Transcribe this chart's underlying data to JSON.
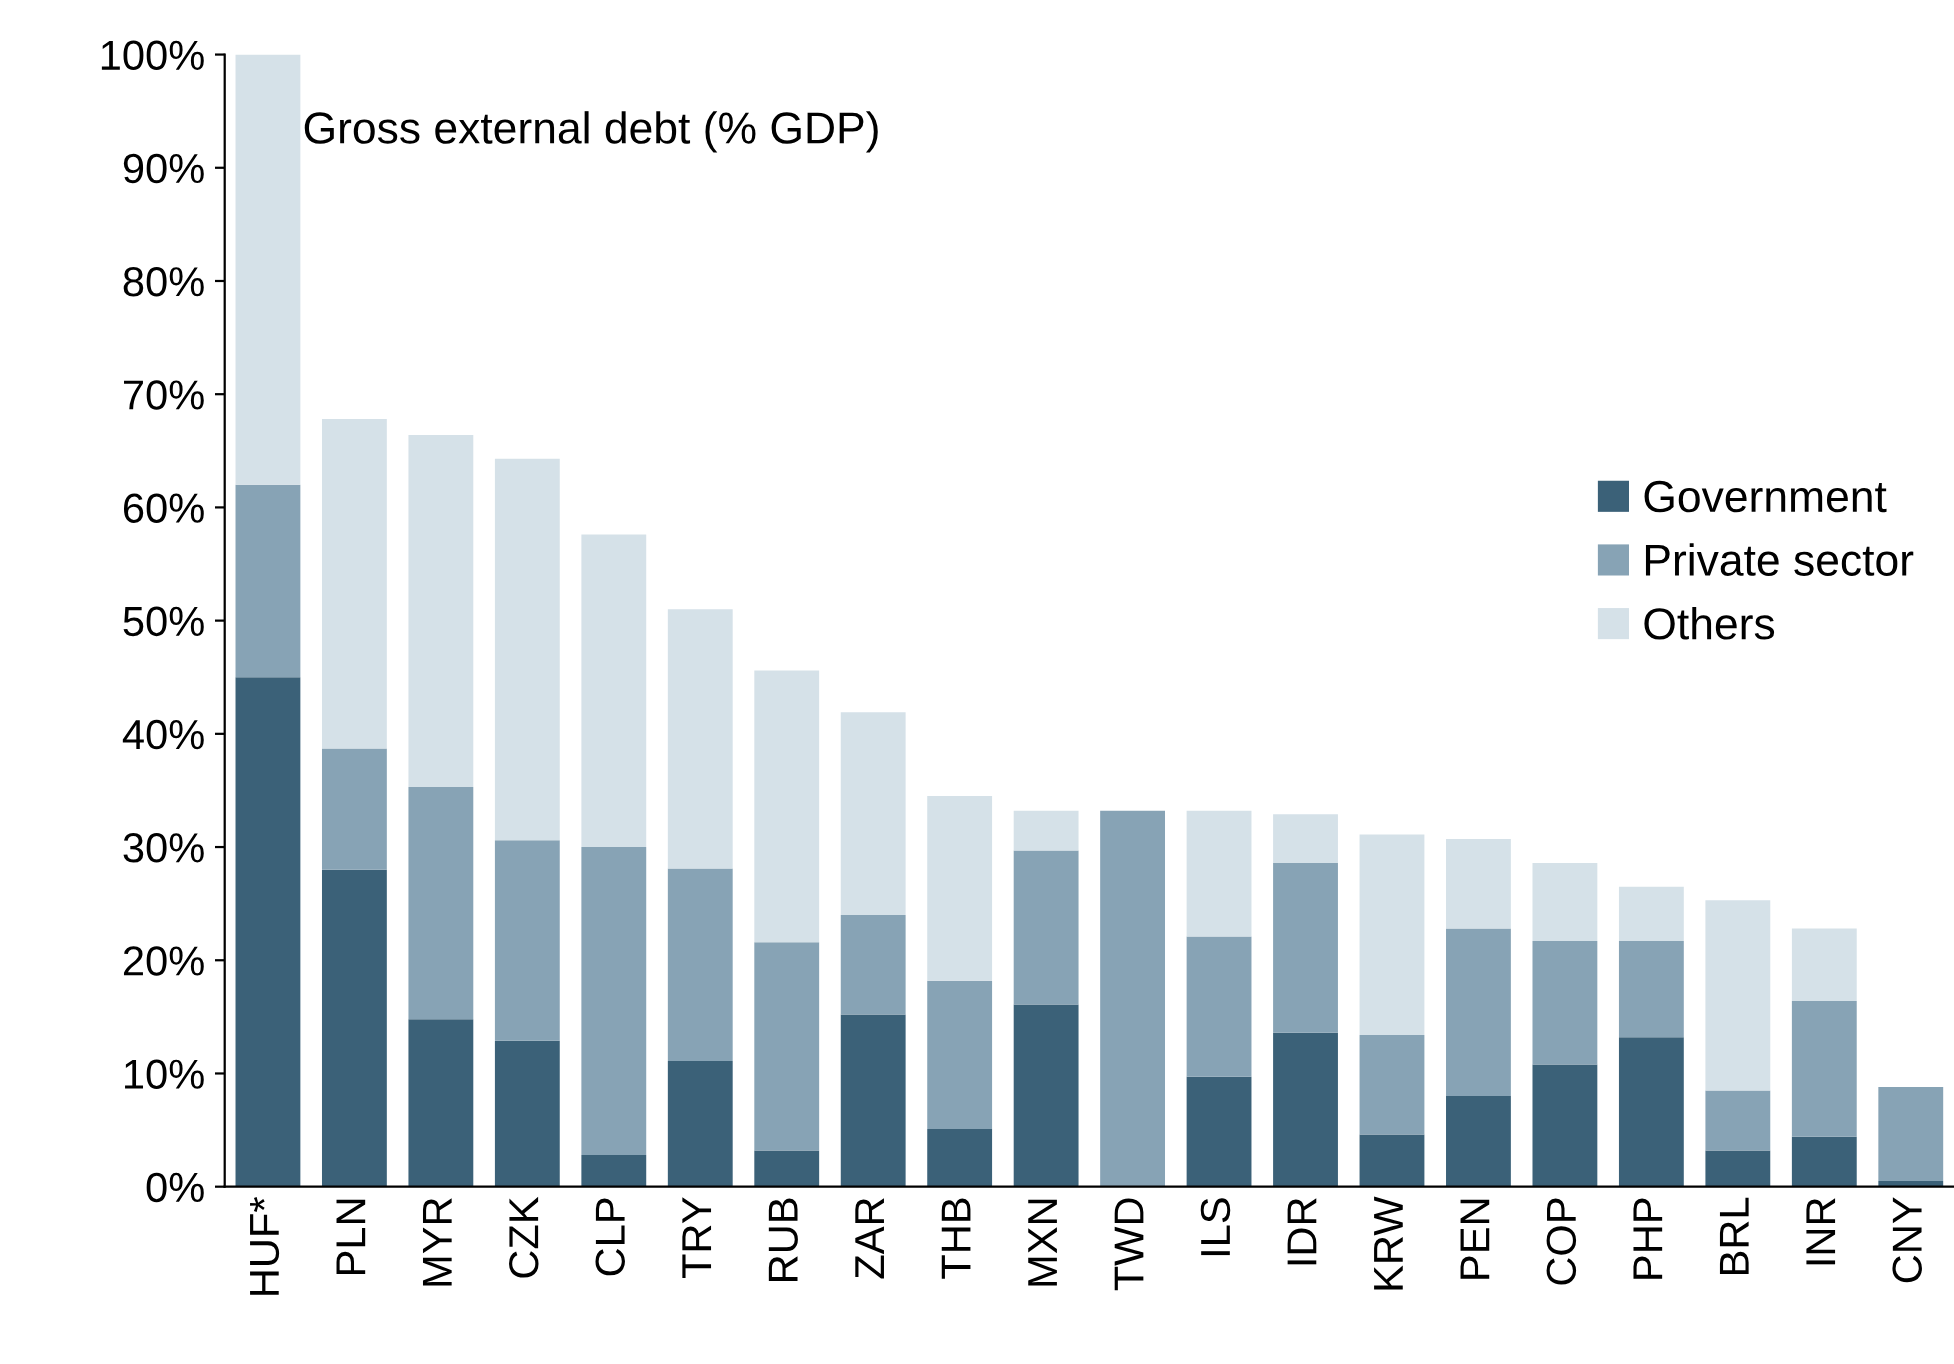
{
  "chart_data": {
    "type": "bar",
    "title": "Gross external debt (% GDP)",
    "stacked": true,
    "categories": [
      "HUF*",
      "PLN",
      "MYR",
      "CZK",
      "CLP",
      "TRY",
      "RUB",
      "ZAR",
      "THB",
      "MXN",
      "TWD",
      "ILS",
      "IDR",
      "KRW",
      "PEN",
      "COP",
      "PHP",
      "BRL",
      "INR",
      "CNY"
    ],
    "series": [
      {
        "name": "Government",
        "color": "#3b6178",
        "values": [
          45,
          28,
          14.8,
          12.9,
          2.8,
          11.1,
          3.2,
          15.2,
          5.1,
          16.1,
          0,
          9.7,
          13.6,
          4.6,
          8,
          10.8,
          13.2,
          3.2,
          4.4,
          0.5
        ]
      },
      {
        "name": "Private sector",
        "color": "#87a3b5",
        "values": [
          17,
          10.7,
          20.5,
          17.7,
          27.2,
          17,
          18.4,
          8.8,
          13.1,
          13.6,
          33.2,
          12.4,
          15,
          8.8,
          14.8,
          10.9,
          8.5,
          5.3,
          12,
          8.3
        ]
      },
      {
        "name": "Others",
        "color": "#d5e1e8",
        "values": [
          38,
          29.1,
          31.1,
          33.7,
          27.6,
          22.9,
          24,
          17.9,
          16.3,
          3.5,
          0,
          11.1,
          4.3,
          17.7,
          7.9,
          6.9,
          4.8,
          16.8,
          6.4,
          0
        ]
      }
    ],
    "ylim": [
      0,
      100
    ],
    "yticks": [
      {
        "value": 0,
        "label": "0%"
      },
      {
        "value": 10,
        "label": "10%"
      },
      {
        "value": 20,
        "label": "20%"
      },
      {
        "value": 30,
        "label": "30%"
      },
      {
        "value": 40,
        "label": "40%"
      },
      {
        "value": 50,
        "label": "50%"
      },
      {
        "value": 60,
        "label": "60%"
      },
      {
        "value": 70,
        "label": "70%"
      },
      {
        "value": 80,
        "label": "80%"
      },
      {
        "value": 90,
        "label": "90%"
      },
      {
        "value": 100,
        "label": "100%"
      }
    ],
    "grid": false,
    "legend": "center right"
  }
}
